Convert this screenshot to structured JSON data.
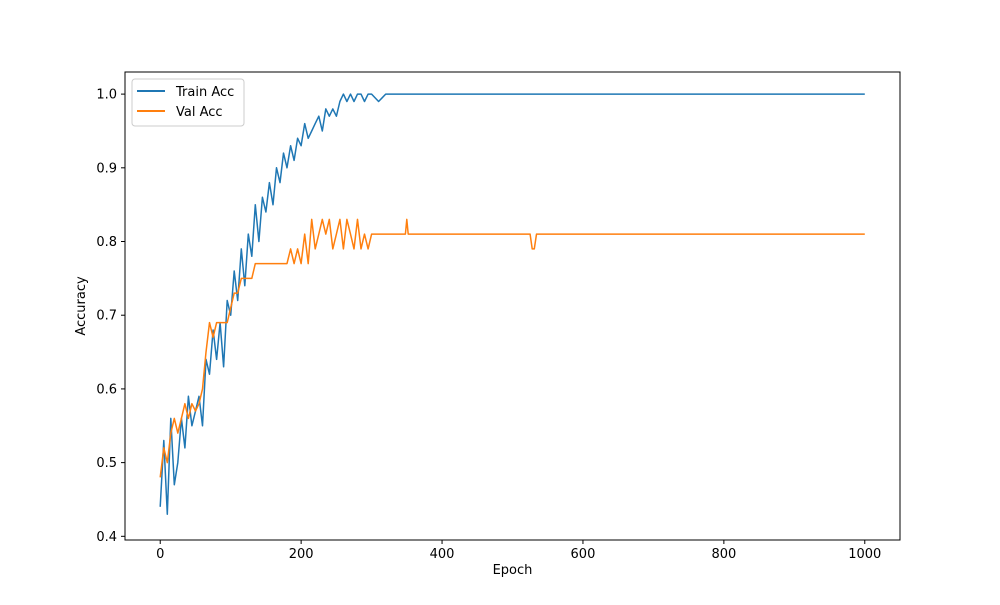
{
  "chart_data": {
    "type": "line",
    "title": "",
    "xlabel": "Epoch",
    "ylabel": "Accuracy",
    "xlim": [
      -50,
      1050
    ],
    "ylim": [
      0.395,
      1.03
    ],
    "xticks": [
      0,
      200,
      400,
      600,
      800,
      1000
    ],
    "xtick_labels": [
      "0",
      "200",
      "400",
      "600",
      "800",
      "1000"
    ],
    "yticks": [
      0.4,
      0.5,
      0.6,
      0.7,
      0.8,
      0.9,
      1.0
    ],
    "ytick_labels": [
      "0.4",
      "0.5",
      "0.6",
      "0.7",
      "0.8",
      "0.9",
      "1.0"
    ],
    "grid": false,
    "legend_position": "upper-left",
    "series": [
      {
        "name": "Train Acc",
        "color": "#1f77b4",
        "x": [
          0,
          5,
          10,
          15,
          20,
          25,
          30,
          35,
          40,
          45,
          50,
          55,
          60,
          65,
          70,
          75,
          80,
          85,
          90,
          95,
          100,
          105,
          110,
          115,
          120,
          125,
          130,
          135,
          140,
          145,
          150,
          155,
          160,
          165,
          170,
          175,
          180,
          185,
          190,
          195,
          200,
          205,
          210,
          215,
          220,
          225,
          230,
          235,
          240,
          245,
          250,
          255,
          260,
          265,
          270,
          275,
          280,
          285,
          290,
          295,
          300,
          310,
          320,
          330,
          340,
          350,
          400,
          500,
          600,
          700,
          800,
          900,
          1000
        ],
        "y": [
          0.44,
          0.53,
          0.43,
          0.56,
          0.47,
          0.5,
          0.56,
          0.52,
          0.59,
          0.55,
          0.57,
          0.59,
          0.55,
          0.64,
          0.62,
          0.68,
          0.64,
          0.69,
          0.63,
          0.72,
          0.7,
          0.76,
          0.72,
          0.79,
          0.74,
          0.81,
          0.78,
          0.85,
          0.8,
          0.86,
          0.84,
          0.88,
          0.85,
          0.9,
          0.88,
          0.92,
          0.9,
          0.93,
          0.91,
          0.94,
          0.93,
          0.96,
          0.94,
          0.95,
          0.96,
          0.97,
          0.95,
          0.98,
          0.97,
          0.98,
          0.97,
          0.99,
          1.0,
          0.99,
          1.0,
          0.99,
          1.0,
          1.0,
          0.99,
          1.0,
          1.0,
          0.99,
          1.0,
          1.0,
          1.0,
          1.0,
          1.0,
          1.0,
          1.0,
          1.0,
          1.0,
          1.0,
          1.0
        ]
      },
      {
        "name": "Val Acc",
        "color": "#ff7f0e",
        "x": [
          0,
          5,
          10,
          15,
          20,
          25,
          30,
          35,
          40,
          45,
          50,
          55,
          60,
          65,
          70,
          75,
          80,
          85,
          90,
          95,
          100,
          105,
          110,
          115,
          120,
          125,
          130,
          135,
          140,
          145,
          150,
          160,
          170,
          180,
          185,
          190,
          195,
          200,
          205,
          210,
          215,
          220,
          225,
          230,
          235,
          240,
          245,
          250,
          255,
          260,
          265,
          270,
          275,
          280,
          285,
          290,
          295,
          300,
          320,
          340,
          348,
          350,
          352,
          400,
          500,
          525,
          528,
          531,
          534,
          600,
          700,
          800,
          900,
          1000
        ],
        "y": [
          0.48,
          0.52,
          0.5,
          0.54,
          0.56,
          0.54,
          0.56,
          0.58,
          0.56,
          0.58,
          0.57,
          0.58,
          0.6,
          0.65,
          0.69,
          0.67,
          0.69,
          0.69,
          0.69,
          0.69,
          0.71,
          0.73,
          0.73,
          0.75,
          0.75,
          0.75,
          0.75,
          0.77,
          0.77,
          0.77,
          0.77,
          0.77,
          0.77,
          0.77,
          0.79,
          0.77,
          0.79,
          0.77,
          0.81,
          0.77,
          0.83,
          0.79,
          0.81,
          0.83,
          0.81,
          0.83,
          0.79,
          0.81,
          0.83,
          0.79,
          0.83,
          0.81,
          0.79,
          0.83,
          0.79,
          0.81,
          0.79,
          0.81,
          0.81,
          0.81,
          0.81,
          0.83,
          0.81,
          0.81,
          0.81,
          0.81,
          0.79,
          0.79,
          0.81,
          0.81,
          0.81,
          0.81,
          0.81,
          0.81
        ]
      }
    ]
  }
}
